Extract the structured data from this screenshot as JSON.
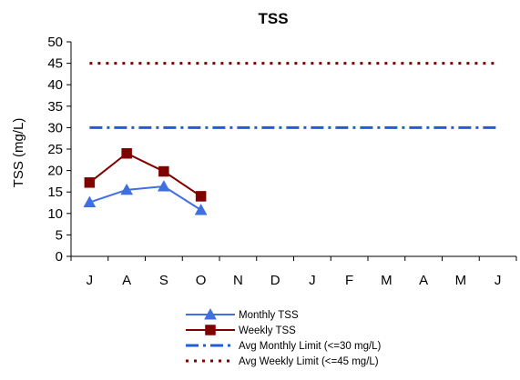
{
  "chart_data": {
    "type": "line",
    "title": "TSS",
    "xlabel": "",
    "ylabel": "TSS (mg/L)",
    "ylim": [
      0,
      50
    ],
    "yticks": [
      0,
      5,
      10,
      15,
      20,
      25,
      30,
      35,
      40,
      45,
      50
    ],
    "categories": [
      "J",
      "A",
      "S",
      "O",
      "N",
      "D",
      "J",
      "F",
      "M",
      "A",
      "M",
      "J"
    ],
    "grid": false,
    "legend_position": "bottom",
    "series": [
      {
        "name": "Monthly TSS",
        "values": [
          12.6,
          15.5,
          16.3,
          10.8,
          null,
          null,
          null,
          null,
          null,
          null,
          null,
          null
        ],
        "color": "#3f6fe0",
        "marker": "triangle",
        "style": "solid"
      },
      {
        "name": "Weekly TSS",
        "values": [
          17.2,
          24.0,
          19.8,
          14.0,
          null,
          null,
          null,
          null,
          null,
          null,
          null,
          null
        ],
        "color": "#800000",
        "marker": "square",
        "style": "solid"
      },
      {
        "name": "Avg Monthly Limit (<=30 mg/L)",
        "values": [
          30,
          30,
          30,
          30,
          30,
          30,
          30,
          30,
          30,
          30,
          30,
          30
        ],
        "color": "#1f5fd6",
        "marker": "none",
        "style": "dash-dot"
      },
      {
        "name": "Avg Weekly Limit (<=45 mg/L)",
        "values": [
          45,
          45,
          45,
          45,
          45,
          45,
          45,
          45,
          45,
          45,
          45,
          45
        ],
        "color": "#800000",
        "marker": "none",
        "style": "dotted"
      }
    ]
  }
}
